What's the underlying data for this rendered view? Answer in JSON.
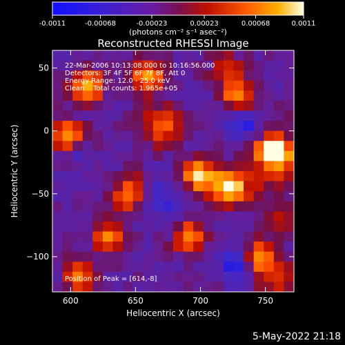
{
  "chart_data": {
    "type": "heatmap",
    "title": "Reconstructed RHESSI Image",
    "xlabel": "Heliocentric X (arcsec)",
    "ylabel": "Heliocentric Y (arcsec)",
    "xlim": [
      586,
      772
    ],
    "ylim": [
      -128,
      64
    ],
    "x_ticks": [
      600,
      650,
      700,
      750
    ],
    "y_ticks": [
      -100,
      -50,
      0,
      50
    ],
    "colorbar": {
      "range": [
        -0.0011,
        0.0011
      ],
      "tick_values": [
        -0.0011,
        -0.00068,
        -0.00023,
        0.00023,
        0.00068,
        0.0011
      ],
      "tick_labels": [
        "-0.0011",
        "-0.00068",
        "-0.00023",
        "0.00023",
        "0.00068",
        "0.0011"
      ],
      "unit_label": "(photons cm⁻² s⁻¹ asec⁻²)"
    },
    "annotations": [
      "22-Mar-2006 10:13:08.000 to 10:16:56.000",
      "Detectors: 3F 4F 5F 6F 7F 8F, Att 0",
      "Energy Range: 12.0 - 25.0 keV",
      "Clean    Total counts: 1.965e+05"
    ],
    "peak_label": "Position of Peak = [614,-8]",
    "peak_position": [
      614,
      -8
    ],
    "grid": {
      "rows": 24,
      "cols": 24,
      "seed": 7
    }
  },
  "footer_date": "5-May-2022 21:18"
}
